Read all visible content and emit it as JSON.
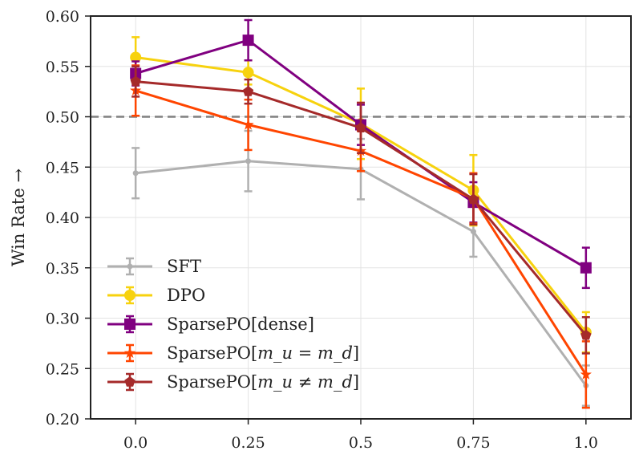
{
  "chart_data": {
    "type": "line",
    "title": "",
    "xlabel": "",
    "ylabel": "Win Rate →",
    "x": [
      0.0,
      0.25,
      0.5,
      0.75,
      1.0
    ],
    "x_tick_labels": [
      "0.0",
      "0.25",
      "0.5",
      "0.75",
      "1.0"
    ],
    "y_ticks": [
      0.2,
      0.25,
      0.3,
      0.35,
      0.4,
      0.45,
      0.5,
      0.55,
      0.6
    ],
    "y_tick_labels": [
      "0.20",
      "0.25",
      "0.30",
      "0.35",
      "0.40",
      "0.45",
      "0.50",
      "0.55",
      "0.60"
    ],
    "xlim": [
      -0.1,
      1.1
    ],
    "ylim": [
      0.2,
      0.6
    ],
    "grid": true,
    "reference_line": {
      "y": 0.5,
      "style": "dashed",
      "color": "#808080"
    },
    "legend_position": "lower-left",
    "series": [
      {
        "name": "SFT",
        "legend_label": "SFT",
        "color": "#b0b0b0",
        "marker": "circle",
        "values": [
          0.444,
          0.456,
          0.448,
          0.386,
          0.233
        ],
        "errors": [
          0.025,
          0.03,
          0.03,
          0.025,
          0.02
        ]
      },
      {
        "name": "DPO",
        "legend_label": "DPO",
        "color": "#f7d20e",
        "marker": "circle-large",
        "values": [
          0.559,
          0.544,
          0.493,
          0.427,
          0.286
        ],
        "errors": [
          0.02,
          0.012,
          0.035,
          0.035,
          0.02
        ]
      },
      {
        "name": "SparsePO[dense]",
        "legend_label": "SparsePO[dense]",
        "color": "#800080",
        "marker": "square",
        "values": [
          0.543,
          0.576,
          0.492,
          0.415,
          0.35
        ],
        "errors": [
          0.012,
          0.02,
          0.02,
          0.02,
          0.02
        ]
      },
      {
        "name": "SparsePO[mu=md]",
        "legend_label": "SparsePO[",
        "legend_math": "m_u = m_d",
        "color": "#ff4500",
        "marker": "star",
        "values": [
          0.526,
          0.492,
          0.466,
          0.419,
          0.244
        ],
        "errors": [
          0.025,
          0.025,
          0.02,
          0.025,
          0.033
        ]
      },
      {
        "name": "SparsePO[mu≠md]",
        "legend_label": "SparsePO[",
        "legend_math": "m_u ≠ m_d",
        "color": "#a52a2a",
        "marker": "pentagon",
        "values": [
          0.535,
          0.525,
          0.489,
          0.418,
          0.283
        ],
        "errors": [
          0.015,
          0.012,
          0.025,
          0.025,
          0.018
        ]
      }
    ]
  }
}
